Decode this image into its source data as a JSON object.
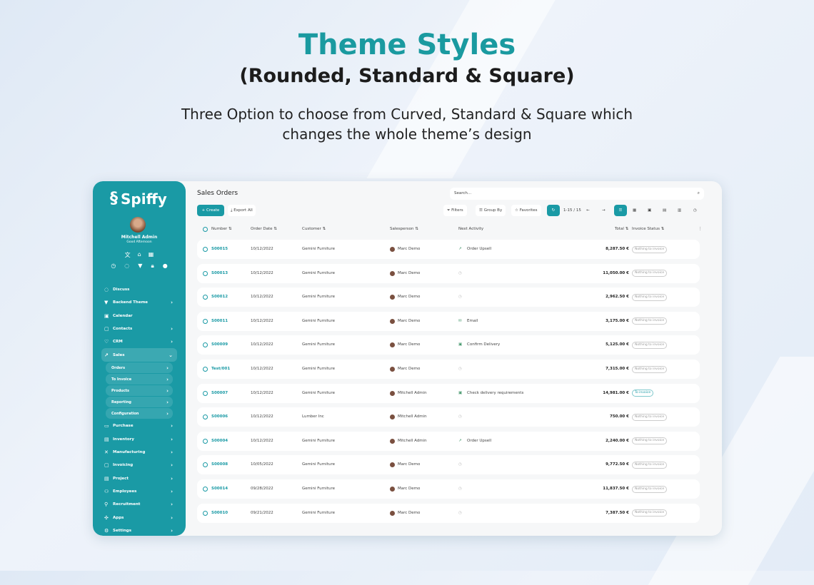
{
  "hero": {
    "title": "Theme Styles",
    "subtitle": "(Rounded, Standard & Square)",
    "description": "Three Option to choose from Curved, Standard & Square which changes the whole theme’s design"
  },
  "colors": {
    "accent": "#1a9aa5",
    "title": "#1a9aa0"
  },
  "sidebar": {
    "logo": "Spiffy",
    "user_name": "Mitchell Admin",
    "greeting": "Good Afternoon",
    "items": [
      {
        "label": "Discuss",
        "icon": "chat-icon",
        "chev": ""
      },
      {
        "label": "Backend Theme",
        "icon": "paint-roller-icon",
        "chev": "›"
      },
      {
        "label": "Calendar",
        "icon": "calendar-icon",
        "chev": ""
      },
      {
        "label": "Contacts",
        "icon": "contacts-icon",
        "chev": "›"
      },
      {
        "label": "CRM",
        "icon": "handshake-icon",
        "chev": "›"
      },
      {
        "label": "Sales",
        "icon": "chart-icon",
        "chev": "⌄",
        "active": true
      }
    ],
    "sub_items": [
      {
        "label": "Orders"
      },
      {
        "label": "To Invoice"
      },
      {
        "label": "Products"
      },
      {
        "label": "Reporting"
      },
      {
        "label": "Configuration"
      }
    ],
    "items2": [
      {
        "label": "Purchase",
        "icon": "card-icon"
      },
      {
        "label": "Inventory",
        "icon": "box-icon"
      },
      {
        "label": "Manufacturing",
        "icon": "tools-icon"
      },
      {
        "label": "Invoicing",
        "icon": "invoice-icon"
      },
      {
        "label": "Project",
        "icon": "project-icon"
      },
      {
        "label": "Employees",
        "icon": "people-icon"
      },
      {
        "label": "Recruitment",
        "icon": "user-plus-icon"
      },
      {
        "label": "Apps",
        "icon": "apps-icon"
      },
      {
        "label": "Settings",
        "icon": "gear-icon"
      }
    ]
  },
  "main": {
    "title": "Sales Orders",
    "search_placeholder": "Search...",
    "create": "+ Create",
    "export": "Export All",
    "filters": "Filters",
    "group_by": "Group By",
    "favorites": "Favorites",
    "pager": "1-15 / 15",
    "columns": {
      "number": "Number ⇅",
      "order_date": "Order Date ⇅",
      "customer": "Customer ⇅",
      "salesperson": "Salesperson ⇅",
      "next_activity": "Next Activity",
      "total": "Total ⇅",
      "invoice_status": "Invoice Status ⇅"
    },
    "rows": [
      {
        "number": "S00015",
        "date": "10/12/2022",
        "customer": "Gemini Furniture",
        "salesperson": "Marc Demo",
        "activity": "Order Upsell",
        "activity_icon": "chart-up-icon",
        "total": "8,287.50 €",
        "status": "Nothing to invoice"
      },
      {
        "number": "S00013",
        "date": "10/12/2022",
        "customer": "Gemini Furniture",
        "salesperson": "Marc Demo",
        "activity": "",
        "activity_icon": "clock-icon",
        "total": "11,050.00 €",
        "status": "Nothing to invoice"
      },
      {
        "number": "S00012",
        "date": "10/12/2022",
        "customer": "Gemini Furniture",
        "salesperson": "Marc Demo",
        "activity": "",
        "activity_icon": "clock-icon",
        "total": "2,962.50 €",
        "status": "Nothing to invoice"
      },
      {
        "number": "S00011",
        "date": "10/12/2022",
        "customer": "Gemini Furniture",
        "salesperson": "Marc Demo",
        "activity": "Email",
        "activity_icon": "email-icon",
        "total": "3,175.00 €",
        "status": "Nothing to invoice"
      },
      {
        "number": "S00009",
        "date": "10/12/2022",
        "customer": "Gemini Furniture",
        "salesperson": "Marc Demo",
        "activity": "Confirm Delivery",
        "activity_icon": "calendar-icon",
        "total": "5,125.00 €",
        "status": "Nothing to invoice"
      },
      {
        "number": "Test/001",
        "date": "10/12/2022",
        "customer": "Gemini Furniture",
        "salesperson": "Marc Demo",
        "activity": "",
        "activity_icon": "clock-icon",
        "total": "7,315.00 €",
        "status": "Nothing to invoice"
      },
      {
        "number": "S00007",
        "date": "10/12/2022",
        "customer": "Gemini Furniture",
        "salesperson": "Mitchell Admin",
        "activity": "Check delivery requirements",
        "activity_icon": "calendar-icon",
        "total": "14,981.00 €",
        "status": "To invoice"
      },
      {
        "number": "S00006",
        "date": "10/12/2022",
        "customer": "Lumber Inc",
        "salesperson": "Mitchell Admin",
        "activity": "",
        "activity_icon": "clock-icon",
        "total": "750.00 €",
        "status": "Nothing to invoice"
      },
      {
        "number": "S00004",
        "date": "10/12/2022",
        "customer": "Gemini Furniture",
        "salesperson": "Mitchell Admin",
        "activity": "Order Upsell",
        "activity_icon": "chart-up-icon",
        "total": "2,240.00 €",
        "status": "Nothing to invoice"
      },
      {
        "number": "S00008",
        "date": "10/05/2022",
        "customer": "Gemini Furniture",
        "salesperson": "Marc Demo",
        "activity": "",
        "activity_icon": "clock-icon",
        "total": "9,772.50 €",
        "status": "Nothing to invoice"
      },
      {
        "number": "S00014",
        "date": "09/28/2022",
        "customer": "Gemini Furniture",
        "salesperson": "Marc Demo",
        "activity": "",
        "activity_icon": "clock-icon",
        "total": "11,837.50 €",
        "status": "Nothing to invoice"
      },
      {
        "number": "S00010",
        "date": "09/21/2022",
        "customer": "Gemini Furniture",
        "salesperson": "Marc Demo",
        "activity": "",
        "activity_icon": "clock-icon",
        "total": "7,387.50 €",
        "status": "Nothing to invoice"
      }
    ]
  }
}
